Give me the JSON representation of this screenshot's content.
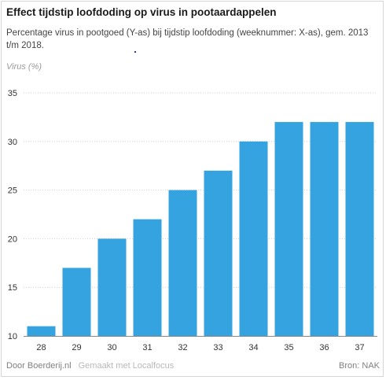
{
  "header": {
    "title": "Effect tijdstip loofdoding op virus in pootaardappelen",
    "subtitle": "Percentage virus in pootgoed (Y-as) bij tijdstip loofdoding (weeknummer: X-as), gem. 2013 t/m 2018."
  },
  "footer": {
    "credit": "Door Boerderij.nl",
    "made_with": "Gemaakt met Localfocus",
    "source": "Bron:  NAK"
  },
  "colors": {
    "bar": "#35a3e0",
    "grid": "#cfcfcf",
    "axis_text": "#333333"
  },
  "chart_data": {
    "type": "bar",
    "title": "Effect tijdstip loofdoding op virus in pootaardappelen",
    "subtitle": "Percentage virus in pootgoed (Y-as) bij tijdstip loofdoding (weeknummer: X-as), gem. 2013 t/m 2018.",
    "ylabel": "Virus (%)",
    "xlabel": "",
    "categories": [
      "28",
      "29",
      "30",
      "31",
      "32",
      "33",
      "34",
      "35",
      "36",
      "37"
    ],
    "values": [
      11,
      17,
      20,
      22,
      25,
      27,
      30,
      32,
      32,
      32
    ],
    "ylim": [
      10,
      35
    ],
    "yticks": [
      10,
      15,
      20,
      25,
      30,
      35
    ],
    "grid": "horizontal dotted",
    "legend": "none"
  }
}
